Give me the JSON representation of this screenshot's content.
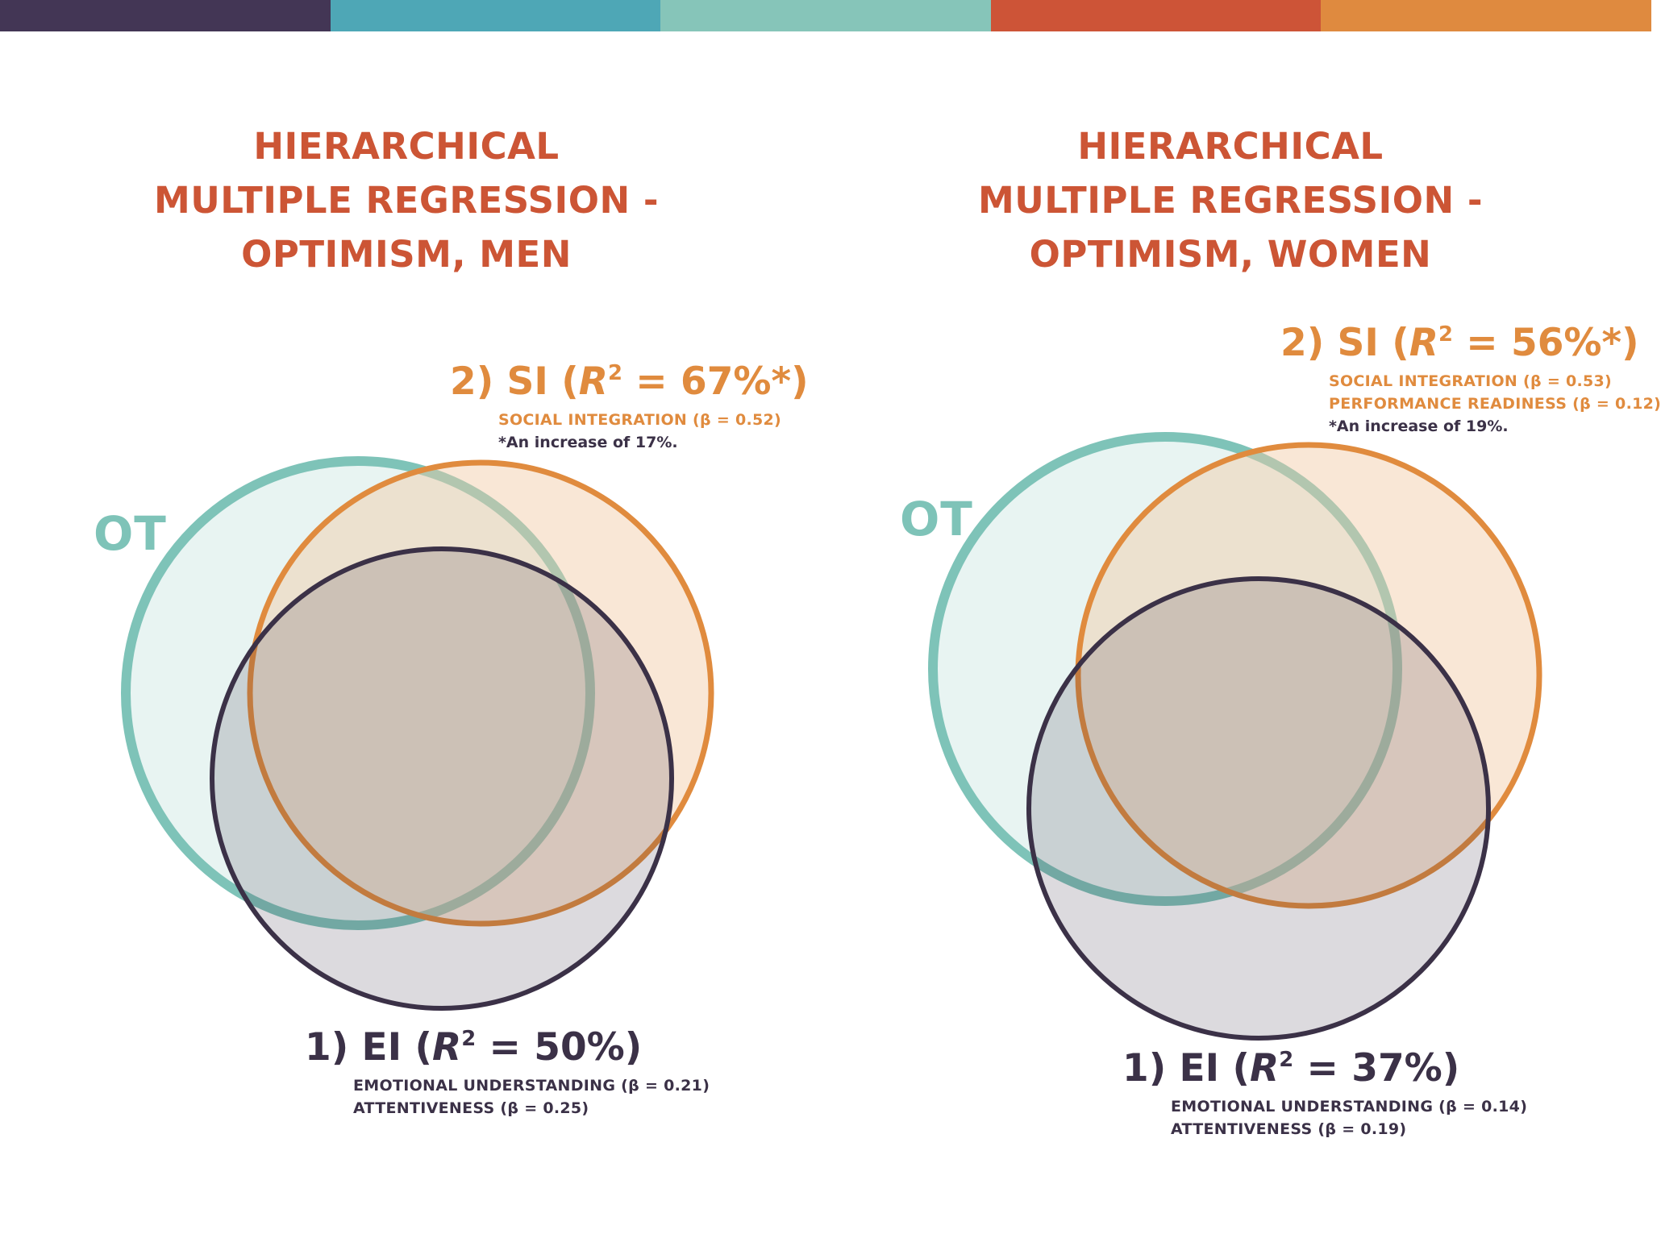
{
  "colors": {
    "bar": [
      "#433655",
      "#4ea7b6",
      "#86c5b9",
      "#cd5437",
      "#df8a3f"
    ],
    "title": "#cc5535",
    "ot": "#7ec3b8",
    "si": "#e08b3e",
    "ei": "#3b3147"
  },
  "men": {
    "title": [
      "HIERARCHICAL",
      "MULTIPLE REGRESSION -",
      "OPTIMISM, MEN"
    ],
    "ot_label": "OT",
    "si": {
      "prefix": "2) SI (",
      "r": "R",
      "sup": "2",
      "value": " = 67%*)",
      "predictors": [
        "SOCIAL INTEGRATION (β = 0.52)"
      ],
      "note": "*An increase of 17%."
    },
    "ei": {
      "prefix": "1) EI (",
      "r": "R",
      "sup": "2",
      "value": " = 50%)",
      "predictors": [
        "EMOTIONAL UNDERSTANDING (β = 0.21)",
        "ATTENTIVENESS (β = 0.25)"
      ]
    }
  },
  "women": {
    "title": [
      "HIERARCHICAL",
      "MULTIPLE REGRESSION -",
      "OPTIMISM, WOMEN"
    ],
    "ot_label": "OT",
    "si": {
      "prefix": "2) SI (",
      "r": "R",
      "sup": "2",
      "value": " = 56%*)",
      "predictors": [
        "SOCIAL INTEGRATION (β = 0.53)",
        "PERFORMANCE READINESS (β = 0.12)"
      ],
      "note": "*An increase of 19%."
    },
    "ei": {
      "prefix": "1) EI (",
      "r": "R",
      "sup": "2",
      "value": " = 37%)",
      "predictors": [
        "EMOTIONAL UNDERSTANDING (β = 0.14)",
        "ATTENTIVENESS (β = 0.19)"
      ]
    }
  }
}
